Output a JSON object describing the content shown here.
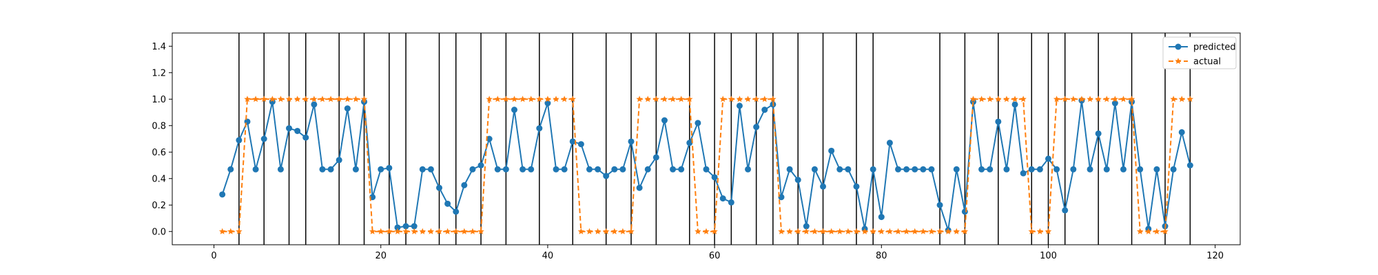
{
  "chart_data": {
    "type": "line",
    "title": "",
    "xlabel": "",
    "ylabel": "",
    "xlim": [
      -5,
      123
    ],
    "ylim": [
      -0.1,
      1.5
    ],
    "xticks": [
      0,
      20,
      40,
      60,
      80,
      100,
      120
    ],
    "yticks": [
      0.0,
      0.2,
      0.4,
      0.6,
      0.8,
      1.0,
      1.2,
      1.4
    ],
    "xtick_labels": [
      "0",
      "20",
      "40",
      "60",
      "80",
      "100",
      "120"
    ],
    "ytick_labels": [
      "0.0",
      "0.2",
      "0.4",
      "0.6",
      "0.8",
      "1.0",
      "1.2",
      "1.4"
    ],
    "grid": false,
    "legend_position": "top-right",
    "vertical_lines": [
      3,
      6,
      9,
      11,
      15,
      18,
      21,
      23,
      27,
      29,
      32,
      35,
      39,
      43,
      47,
      50,
      53,
      57,
      60,
      62,
      65,
      67,
      70,
      73,
      77,
      79,
      87,
      90,
      94,
      98,
      100,
      102,
      106,
      110,
      114,
      117
    ],
    "series": [
      {
        "name": "predicted",
        "color": "#1f77b4",
        "style": "solid",
        "marker": "circle",
        "x": [
          1,
          2,
          3,
          4,
          5,
          6,
          7,
          8,
          9,
          10,
          11,
          12,
          13,
          14,
          15,
          16,
          17,
          18,
          19,
          20,
          21,
          22,
          23,
          24,
          25,
          26,
          27,
          28,
          29,
          30,
          31,
          32,
          33,
          34,
          35,
          36,
          37,
          38,
          39,
          40,
          41,
          42,
          43,
          44,
          45,
          46,
          47,
          48,
          49,
          50,
          51,
          52,
          53,
          54,
          55,
          56,
          57,
          58,
          59,
          60,
          61,
          62,
          63,
          64,
          65,
          66,
          67,
          68,
          69,
          70,
          71,
          72,
          73,
          74,
          75,
          76,
          77,
          78,
          79,
          80,
          81,
          82,
          83,
          84,
          85,
          86,
          87,
          88,
          89,
          90,
          91,
          92,
          93,
          94,
          95,
          96,
          97,
          98,
          99,
          100,
          101,
          102,
          103,
          104,
          105,
          106,
          107,
          108,
          109,
          110,
          111,
          112,
          113,
          114,
          115,
          116,
          117
        ],
        "values": [
          0.28,
          0.47,
          0.69,
          0.83,
          0.47,
          0.7,
          0.98,
          0.47,
          0.78,
          0.76,
          0.71,
          0.96,
          0.47,
          0.47,
          0.54,
          0.93,
          0.47,
          0.98,
          0.26,
          0.47,
          0.48,
          0.03,
          0.04,
          0.04,
          0.47,
          0.47,
          0.33,
          0.21,
          0.15,
          0.35,
          0.47,
          0.5,
          0.7,
          0.47,
          0.47,
          0.92,
          0.47,
          0.47,
          0.78,
          0.97,
          0.47,
          0.47,
          0.68,
          0.66,
          0.47,
          0.47,
          0.42,
          0.47,
          0.47,
          0.68,
          0.33,
          0.47,
          0.56,
          0.84,
          0.47,
          0.47,
          0.67,
          0.82,
          0.47,
          0.41,
          0.25,
          0.22,
          0.95,
          0.47,
          0.79,
          0.92,
          0.96,
          0.26,
          0.47,
          0.39,
          0.04,
          0.47,
          0.34,
          0.61,
          0.47,
          0.47,
          0.34,
          0.02,
          0.47,
          0.11,
          0.67,
          0.47,
          0.47,
          0.47,
          0.47,
          0.47,
          0.2,
          0.01,
          0.47,
          0.15,
          0.98,
          0.47,
          0.47,
          0.83,
          0.47,
          0.96,
          0.44,
          0.47,
          0.47,
          0.55,
          0.47,
          0.16,
          0.47,
          0.99,
          0.47,
          0.74,
          0.47,
          0.97,
          0.47,
          0.98,
          0.47,
          0.02,
          0.47,
          0.04,
          0.47,
          0.75,
          0.5
        ]
      },
      {
        "name": "actual",
        "color": "#ff7f0e",
        "style": "dashed",
        "marker": "star",
        "x": [
          1,
          2,
          3,
          4,
          5,
          6,
          7,
          8,
          9,
          10,
          11,
          12,
          13,
          14,
          15,
          16,
          17,
          18,
          19,
          20,
          21,
          22,
          23,
          24,
          25,
          26,
          27,
          28,
          29,
          30,
          31,
          32,
          33,
          34,
          35,
          36,
          37,
          38,
          39,
          40,
          41,
          42,
          43,
          44,
          45,
          46,
          47,
          48,
          49,
          50,
          51,
          52,
          53,
          54,
          55,
          56,
          57,
          58,
          59,
          60,
          61,
          62,
          63,
          64,
          65,
          66,
          67,
          68,
          69,
          70,
          71,
          72,
          73,
          74,
          75,
          76,
          77,
          78,
          79,
          80,
          81,
          82,
          83,
          84,
          85,
          86,
          87,
          88,
          89,
          90,
          91,
          92,
          93,
          94,
          95,
          96,
          97,
          98,
          99,
          100,
          101,
          102,
          103,
          104,
          105,
          106,
          107,
          108,
          109,
          110,
          111,
          112,
          113,
          114,
          115,
          116,
          117
        ],
        "values": [
          0,
          0,
          0,
          1,
          1,
          1,
          1,
          1,
          1,
          1,
          1,
          1,
          1,
          1,
          1,
          1,
          1,
          1,
          0,
          0,
          0,
          0,
          0,
          0,
          0,
          0,
          0,
          0,
          0,
          0,
          0,
          0,
          1,
          1,
          1,
          1,
          1,
          1,
          1,
          1,
          1,
          1,
          1,
          0,
          0,
          0,
          0,
          0,
          0,
          0,
          1,
          1,
          1,
          1,
          1,
          1,
          1,
          0,
          0,
          0,
          1,
          1,
          1,
          1,
          1,
          1,
          1,
          0,
          0,
          0,
          0,
          0,
          0,
          0,
          0,
          0,
          0,
          0,
          0,
          0,
          0,
          0,
          0,
          0,
          0,
          0,
          0,
          0,
          0,
          0,
          1,
          1,
          1,
          1,
          1,
          1,
          1,
          0,
          0,
          0,
          1,
          1,
          1,
          1,
          1,
          1,
          1,
          1,
          1,
          1,
          0,
          0,
          0,
          0,
          1,
          1,
          1
        ]
      }
    ]
  }
}
